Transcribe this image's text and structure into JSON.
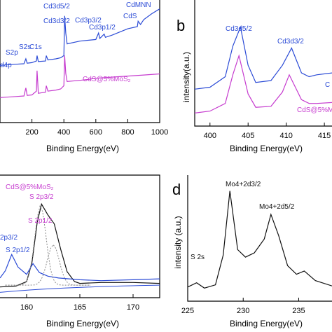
{
  "colors": {
    "blue": "#2b4bd6",
    "magenta": "#c63ccf",
    "black": "#111111",
    "gray": "#888888"
  },
  "panels": {
    "a": {
      "letter": "",
      "xlabel": "Binding Energy(eV)",
      "xticks": [
        "200",
        "400",
        "600",
        "800",
        "1000"
      ],
      "annotations": {
        "cd3d52": "Cd3d5/2",
        "cd3d32": "Cd3d3/2",
        "cd3p32": "Cd3p3/2",
        "cd3p12": "Cd3p1/2",
        "cds": "CdS",
        "cdmnn": "CdMNN",
        "s2p": "S2p",
        "s2s": "S2s",
        "c1s": "C1s",
        "d4p": "d4p",
        "composite": "CdS@5%MoS₂"
      }
    },
    "b": {
      "letter": "b",
      "xlabel": "Binding Energy(eV)",
      "ylabel": "intensity(a.u.)",
      "xticks": [
        "400",
        "405",
        "410",
        "415"
      ],
      "annotations": {
        "cd3d52": "Cd3d5/2",
        "cd3d32": "Cd3d3/2",
        "cut": "C",
        "composite": "CdS@5%Mo"
      }
    },
    "c": {
      "letter": "",
      "xlabel": "Binding Energy(eV)",
      "xticks": [
        "160",
        "165",
        "170"
      ],
      "annotations": {
        "composite": "CdS@5%MoS₂",
        "s2p32_m": "S 2p3/2",
        "s2p12_m": "S 2p1/2",
        "s2p32_b": "2p3/2",
        "s2p12_b": "S 2p1/2"
      }
    },
    "d": {
      "letter": "d",
      "xlabel": "Binding Energy(eV)",
      "ylabel": "intensity (a.u.)",
      "xticks": [
        "225",
        "230",
        "235"
      ],
      "annotations": {
        "mo32": "Mo4+2d3/2",
        "mo52": "Mo4+2d5/2",
        "s2s": "S 2s"
      }
    }
  },
  "chart_data": [
    {
      "panel": "a",
      "type": "line",
      "xlabel": "Binding Energy(eV)",
      "xlim": [
        0,
        1000
      ],
      "series": [
        {
          "name": "CdS",
          "color": "#2b4bd6",
          "x": [
            0,
            100,
            150,
            162,
            170,
            200,
            228,
            232,
            240,
            285,
            290,
            300,
            350,
            380,
            400,
            405,
            412,
            420,
            500,
            600,
            617,
            625,
            652,
            660,
            700,
            800,
            860,
            865,
            880,
            900,
            950,
            1000
          ],
          "y": [
            100,
            102,
            103,
            112,
            104,
            105,
            108,
            118,
            107,
            108,
            118,
            110,
            112,
            114,
            118,
            192,
            160,
            140,
            145,
            148,
            160,
            150,
            158,
            152,
            156,
            168,
            172,
            182,
            176,
            185,
            196,
            205
          ]
        },
        {
          "name": "CdS@5%MoS2",
          "color": "#c63ccf",
          "x": [
            0,
            100,
            150,
            162,
            170,
            200,
            228,
            232,
            236,
            240,
            285,
            290,
            300,
            350,
            380,
            400,
            405,
            412,
            420,
            500,
            560,
            600,
            700,
            800,
            900,
            1000
          ],
          "y": [
            40,
            42,
            43,
            58,
            44,
            45,
            52,
            90,
            70,
            48,
            50,
            62,
            52,
            54,
            56,
            62,
            118,
            85,
            70,
            72,
            74,
            76,
            78,
            80,
            82,
            84
          ]
        }
      ]
    },
    {
      "panel": "b",
      "type": "line",
      "xlabel": "Binding Energy(eV)",
      "ylabel": "intensity(a.u.)",
      "xlim": [
        398,
        416
      ],
      "series": [
        {
          "name": "CdS",
          "color": "#2b4bd6",
          "x": [
            398,
            400,
            402,
            403,
            404.0,
            405,
            406,
            408,
            409.5,
            410.7,
            412,
            413,
            414,
            416
          ],
          "y": [
            35,
            37,
            48,
            80,
            100,
            60,
            42,
            44,
            60,
            78,
            52,
            48,
            50,
            52
          ]
        },
        {
          "name": "CdS@5%MoS2",
          "color": "#c63ccf",
          "x": [
            398,
            400,
            402,
            403,
            403.8,
            405,
            406,
            408,
            409.5,
            410.4,
            412,
            413,
            414,
            416
          ],
          "y": [
            10,
            12,
            20,
            50,
            70,
            30,
            16,
            17,
            32,
            50,
            24,
            20,
            20,
            21
          ]
        }
      ]
    },
    {
      "panel": "c",
      "type": "line",
      "xlabel": "Binding Energy(eV)",
      "xlim": [
        157.5,
        172.5
      ],
      "series": [
        {
          "name": "CdS@5%MoS2",
          "color": "#111111",
          "x": [
            157.5,
            159,
            160,
            160.5,
            161.0,
            161.4,
            162,
            162.6,
            163.2,
            163.8,
            164.5,
            165,
            167,
            170,
            172.5
          ],
          "y": [
            8,
            9,
            14,
            35,
            80,
            100,
            88,
            78,
            50,
            25,
            14,
            12,
            13,
            13,
            12
          ]
        },
        {
          "name": "CdS",
          "color": "#2b4bd6",
          "x": [
            157.5,
            158,
            158.6,
            159.2,
            160,
            160.6,
            161.2,
            162,
            163,
            165,
            167,
            170,
            172.5
          ],
          "y": [
            18,
            26,
            44,
            30,
            22,
            34,
            24,
            20,
            18,
            16,
            15,
            16,
            17
          ]
        }
      ]
    },
    {
      "panel": "d",
      "type": "line",
      "xlabel": "Binding Energy(eV)",
      "ylabel": "intensity (a.u.)",
      "xlim": [
        225,
        238
      ],
      "series": [
        {
          "name": "",
          "color": "#111111",
          "x": [
            225,
            225.8,
            226.5,
            227.5,
            228.2,
            228.8,
            229.5,
            230.2,
            231.0,
            231.9,
            232.5,
            233.2,
            234.0,
            234.8,
            235.5,
            236.5,
            238
          ],
          "y": [
            10,
            14,
            9,
            12,
            40,
            100,
            45,
            38,
            42,
            55,
            78,
            58,
            30,
            22,
            25,
            16,
            11
          ]
        }
      ]
    }
  ]
}
